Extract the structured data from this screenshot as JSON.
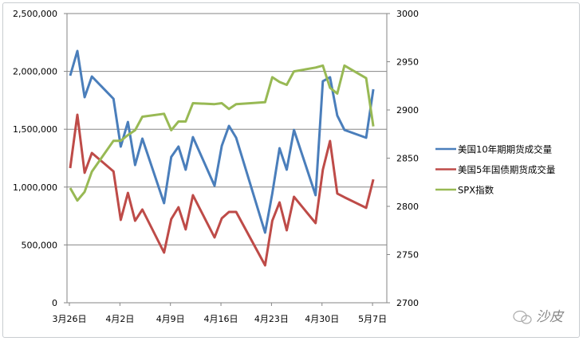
{
  "chart_data": {
    "type": "line",
    "title": "",
    "xlabel": "",
    "ylabel": "",
    "y_left_lim": [
      0,
      2500000
    ],
    "y_left_ticks": [
      "0",
      "500,000",
      "1,000,000",
      "1,500,000",
      "2,000,000",
      "2,500,000"
    ],
    "y_right_lim": [
      2700,
      3000
    ],
    "y_right_ticks": [
      "2700",
      "2750",
      "2800",
      "2850",
      "2900",
      "2950",
      "3000"
    ],
    "x_ticks": [
      {
        "date": "03-26",
        "label": "3月26日"
      },
      {
        "date": "04-02",
        "label": "4月2日"
      },
      {
        "date": "04-09",
        "label": "4月9日"
      },
      {
        "date": "04-16",
        "label": "4月16日"
      },
      {
        "date": "04-23",
        "label": "4月23日"
      },
      {
        "date": "04-30",
        "label": "4月30日"
      },
      {
        "date": "05-07",
        "label": "5月7日"
      }
    ],
    "grid": "horizontal",
    "legend_position": "right",
    "x": [
      "03-26",
      "03-27",
      "03-28",
      "03-29",
      "04-01",
      "04-02",
      "04-03",
      "04-04",
      "04-05",
      "04-08",
      "04-09",
      "04-10",
      "04-11",
      "04-12",
      "04-15",
      "04-16",
      "04-17",
      "04-18",
      "04-22",
      "04-23",
      "04-24",
      "04-25",
      "04-26",
      "04-29",
      "04-30",
      "05-01",
      "05-02",
      "05-03",
      "05-06",
      "05-07"
    ],
    "series": [
      {
        "name": "美国10年期期货成交量",
        "axis": "left",
        "color": "#4a7ebb",
        "values": [
          1963000,
          2176000,
          1777000,
          1956000,
          1763000,
          1350000,
          1563000,
          1191000,
          1419000,
          861000,
          1260000,
          1350000,
          1150000,
          1432000,
          1012000,
          1357000,
          1529000,
          1426000,
          606000,
          944000,
          1336000,
          1150000,
          1494000,
          930000,
          1915000,
          1949000,
          1618000,
          1494000,
          1426000,
          1846000
        ]
      },
      {
        "name": "美国5年国债期货成交量",
        "axis": "left",
        "color": "#be4b48",
        "values": [
          1164000,
          1625000,
          1123000,
          1295000,
          1136000,
          716000,
          950000,
          709000,
          806000,
          434000,
          723000,
          826000,
          634000,
          930000,
          565000,
          730000,
          785000,
          785000,
          324000,
          709000,
          868000,
          627000,
          916000,
          689000,
          1150000,
          1398000,
          944000,
          912000,
          820000,
          1067000
        ]
      },
      {
        "name": "SPX指数",
        "axis": "right",
        "color": "#98b954",
        "values": [
          2819,
          2806,
          2815,
          2836,
          2868,
          2868,
          2874,
          2879,
          2893,
          2896,
          2879,
          2888,
          2888,
          2907,
          2906,
          2907,
          2901,
          2906,
          2908,
          2934,
          2929,
          2926,
          2940,
          2944,
          2946,
          2923,
          2917,
          2946,
          2933,
          2883
        ]
      }
    ]
  },
  "watermark": {
    "text": "沙皮",
    "icon": "wechat-icon"
  }
}
